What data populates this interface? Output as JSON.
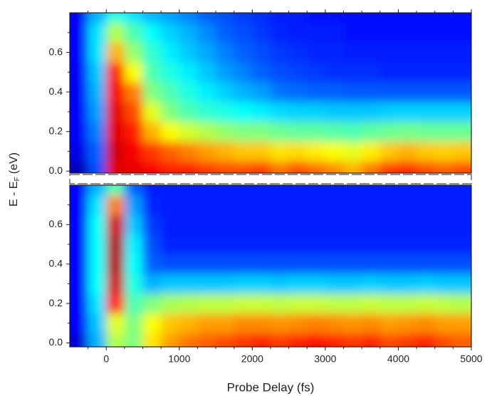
{
  "chart_data": [
    {
      "type": "heatmap",
      "colormap": "jet",
      "ylabel": [
        "E - E",
        "F",
        "(eV)"
      ],
      "x": [
        -375,
        -125,
        125,
        375,
        625,
        875,
        1125,
        1375,
        1625,
        1875,
        2125,
        2375,
        2625,
        2875,
        3125,
        3375,
        3625,
        3875,
        4125,
        4375,
        4625,
        4875
      ],
      "y": [
        0,
        0.1,
        0.2,
        0.3,
        0.4,
        0.5,
        0.6,
        0.7,
        0.8
      ],
      "z": [
        [
          0.05,
          0.1,
          0.12,
          0.12,
          0.12,
          0.12,
          0.12,
          0.12,
          0.12
        ],
        [
          0.2,
          0.22,
          0.25,
          0.28,
          0.3,
          0.32,
          0.35,
          0.35,
          0.3
        ],
        [
          0.9,
          0.92,
          0.9,
          0.9,
          0.88,
          0.85,
          0.7,
          0.55,
          0.4
        ],
        [
          0.9,
          0.88,
          0.85,
          0.8,
          0.75,
          0.62,
          0.52,
          0.45,
          0.35
        ],
        [
          0.88,
          0.82,
          0.7,
          0.6,
          0.5,
          0.45,
          0.42,
          0.38,
          0.3
        ],
        [
          0.85,
          0.78,
          0.62,
          0.5,
          0.45,
          0.4,
          0.36,
          0.33,
          0.28
        ],
        [
          0.85,
          0.75,
          0.58,
          0.45,
          0.4,
          0.36,
          0.32,
          0.3,
          0.25
        ],
        [
          0.82,
          0.72,
          0.55,
          0.42,
          0.36,
          0.32,
          0.29,
          0.26,
          0.22
        ],
        [
          0.8,
          0.7,
          0.52,
          0.4,
          0.33,
          0.28,
          0.25,
          0.22,
          0.2
        ],
        [
          0.8,
          0.68,
          0.5,
          0.38,
          0.3,
          0.25,
          0.22,
          0.2,
          0.18
        ],
        [
          0.82,
          0.68,
          0.5,
          0.36,
          0.28,
          0.22,
          0.2,
          0.18,
          0.17
        ],
        [
          0.76,
          0.65,
          0.48,
          0.34,
          0.24,
          0.2,
          0.18,
          0.16,
          0.15
        ],
        [
          0.8,
          0.66,
          0.47,
          0.33,
          0.23,
          0.19,
          0.17,
          0.15,
          0.15
        ],
        [
          0.77,
          0.64,
          0.47,
          0.33,
          0.22,
          0.18,
          0.16,
          0.15,
          0.14
        ],
        [
          0.74,
          0.62,
          0.46,
          0.32,
          0.22,
          0.17,
          0.16,
          0.15,
          0.14
        ],
        [
          0.7,
          0.6,
          0.45,
          0.32,
          0.21,
          0.17,
          0.15,
          0.14,
          0.14
        ],
        [
          0.76,
          0.64,
          0.47,
          0.32,
          0.21,
          0.17,
          0.15,
          0.14,
          0.14
        ],
        [
          0.82,
          0.68,
          0.48,
          0.33,
          0.21,
          0.16,
          0.15,
          0.14,
          0.14
        ],
        [
          0.84,
          0.7,
          0.49,
          0.33,
          0.21,
          0.16,
          0.15,
          0.14,
          0.14
        ],
        [
          0.8,
          0.68,
          0.48,
          0.33,
          0.21,
          0.16,
          0.15,
          0.14,
          0.14
        ],
        [
          0.78,
          0.67,
          0.48,
          0.33,
          0.21,
          0.16,
          0.15,
          0.14,
          0.14
        ],
        [
          0.8,
          0.68,
          0.48,
          0.33,
          0.21,
          0.16,
          0.15,
          0.14,
          0.14
        ]
      ],
      "xlim": [
        -500,
        5000
      ],
      "ylim": [
        -0.01,
        0.8
      ],
      "yticks": [
        {
          "value": 0,
          "label": "0.0"
        },
        0.2,
        0.4,
        0.6
      ]
    },
    {
      "type": "heatmap",
      "colormap": "jet",
      "xlabel": "Probe Delay (fs)",
      "x": [
        -375,
        -125,
        125,
        375,
        625,
        875,
        1125,
        1375,
        1625,
        1875,
        2125,
        2375,
        2625,
        2875,
        3125,
        3375,
        3625,
        3875,
        4125,
        4375,
        4625,
        4875
      ],
      "y": [
        0,
        0.1,
        0.2,
        0.3,
        0.4,
        0.5,
        0.6,
        0.7,
        0.8
      ],
      "z": [
        [
          0.08,
          0.12,
          0.13,
          0.13,
          0.13,
          0.13,
          0.13,
          0.13,
          0.13
        ],
        [
          0.3,
          0.32,
          0.35,
          0.38,
          0.38,
          0.38,
          0.38,
          0.35,
          0.3
        ],
        [
          0.55,
          0.6,
          0.85,
          0.92,
          0.95,
          0.95,
          0.92,
          0.75,
          0.45
        ],
        [
          0.5,
          0.5,
          0.45,
          0.4,
          0.38,
          0.36,
          0.32,
          0.28,
          0.22
        ],
        [
          0.65,
          0.62,
          0.5,
          0.3,
          0.22,
          0.2,
          0.18,
          0.16,
          0.15
        ],
        [
          0.72,
          0.68,
          0.54,
          0.32,
          0.2,
          0.16,
          0.15,
          0.15,
          0.15
        ],
        [
          0.76,
          0.7,
          0.55,
          0.32,
          0.2,
          0.16,
          0.15,
          0.15,
          0.15
        ],
        [
          0.78,
          0.72,
          0.56,
          0.32,
          0.2,
          0.16,
          0.15,
          0.15,
          0.15
        ],
        [
          0.8,
          0.72,
          0.56,
          0.32,
          0.2,
          0.16,
          0.15,
          0.15,
          0.15
        ],
        [
          0.82,
          0.74,
          0.57,
          0.33,
          0.2,
          0.16,
          0.15,
          0.15,
          0.15
        ],
        [
          0.84,
          0.74,
          0.57,
          0.33,
          0.2,
          0.16,
          0.15,
          0.15,
          0.15
        ],
        [
          0.82,
          0.73,
          0.56,
          0.32,
          0.2,
          0.16,
          0.15,
          0.15,
          0.15
        ],
        [
          0.84,
          0.74,
          0.57,
          0.33,
          0.2,
          0.16,
          0.15,
          0.15,
          0.15
        ],
        [
          0.86,
          0.75,
          0.57,
          0.33,
          0.2,
          0.16,
          0.15,
          0.15,
          0.15
        ],
        [
          0.84,
          0.74,
          0.56,
          0.32,
          0.2,
          0.16,
          0.15,
          0.15,
          0.15
        ],
        [
          0.82,
          0.73,
          0.56,
          0.32,
          0.2,
          0.16,
          0.15,
          0.15,
          0.15
        ],
        [
          0.84,
          0.74,
          0.57,
          0.33,
          0.2,
          0.16,
          0.15,
          0.15,
          0.15
        ],
        [
          0.8,
          0.72,
          0.56,
          0.32,
          0.2,
          0.16,
          0.15,
          0.15,
          0.15
        ],
        [
          0.82,
          0.73,
          0.56,
          0.32,
          0.2,
          0.16,
          0.15,
          0.15,
          0.15
        ],
        [
          0.84,
          0.74,
          0.57,
          0.33,
          0.2,
          0.16,
          0.15,
          0.15,
          0.15
        ],
        [
          0.8,
          0.72,
          0.56,
          0.32,
          0.2,
          0.16,
          0.15,
          0.15,
          0.15
        ],
        [
          0.78,
          0.72,
          0.55,
          0.32,
          0.2,
          0.16,
          0.15,
          0.15,
          0.15
        ]
      ],
      "xlim": [
        -500,
        5000
      ],
      "ylim": [
        -0.02,
        0.8
      ],
      "xticks": [
        0,
        1000,
        2000,
        3000,
        4000,
        5000
      ],
      "yticks": [
        {
          "value": 0,
          "label": "0.0"
        },
        0.2,
        0.4,
        0.6
      ]
    }
  ]
}
